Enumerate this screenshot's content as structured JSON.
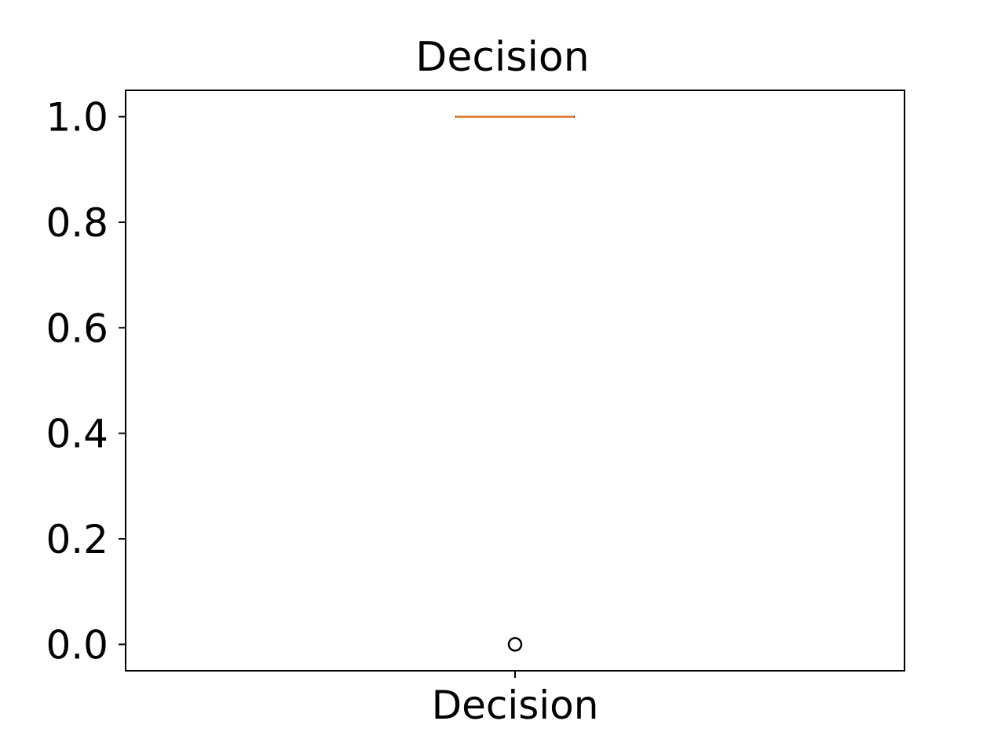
{
  "chart_data": {
    "type": "box",
    "title": "Decision",
    "xlabel": "",
    "ylabel": "",
    "categories": [
      "Decision"
    ],
    "ylim": [
      -0.05,
      1.05
    ],
    "yticks": [
      0.0,
      0.2,
      0.4,
      0.6,
      0.8,
      1.0
    ],
    "ytick_labels": [
      "0.0",
      "0.2",
      "0.4",
      "0.6",
      "0.8",
      "1.0"
    ],
    "series": [
      {
        "q1": 1.0,
        "median": 1.0,
        "q3": 1.0,
        "whisker_low": 1.0,
        "whisker_high": 1.0,
        "outliers": [
          0.0
        ]
      }
    ],
    "grid": false,
    "colors": {
      "median": "#e07b27",
      "box": "#000000",
      "axes": "#000000"
    }
  }
}
